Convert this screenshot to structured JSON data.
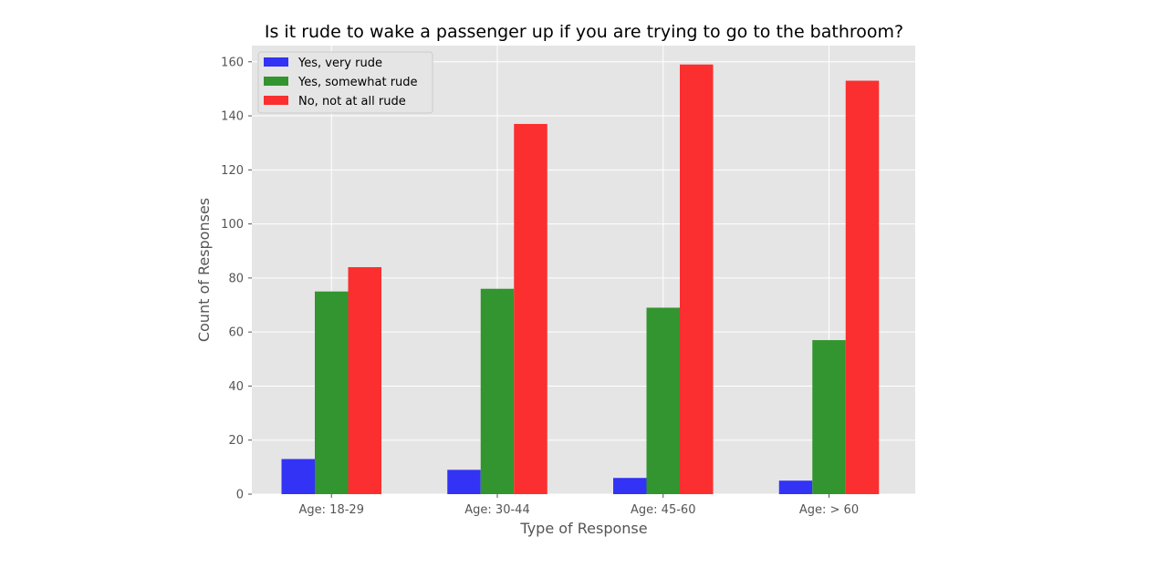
{
  "chart_data": {
    "type": "bar",
    "title": "Is it rude to wake a passenger up if you are trying to go to the bathroom?",
    "xlabel": "Type of Response",
    "ylabel": "Count of Responses",
    "categories": [
      "Age: 18-29",
      "Age: 30-44",
      "Age: 45-60",
      "Age: > 60"
    ],
    "series": [
      {
        "name": "Yes, very rude",
        "color": "#3333f5",
        "values": [
          13,
          9,
          6,
          5
        ]
      },
      {
        "name": "Yes, somewhat rude",
        "color": "#33952f",
        "values": [
          75,
          76,
          69,
          57
        ]
      },
      {
        "name": "No, not at all rude",
        "color": "#fb2f2f",
        "values": [
          84,
          137,
          159,
          153
        ]
      }
    ],
    "ylim": [
      0,
      166
    ],
    "yticks": [
      0,
      20,
      40,
      60,
      80,
      100,
      120,
      140,
      160
    ],
    "grid": true,
    "legend_position": "top-left",
    "colors": {
      "background": "#e5e5e5",
      "grid": "#ffffff"
    }
  }
}
